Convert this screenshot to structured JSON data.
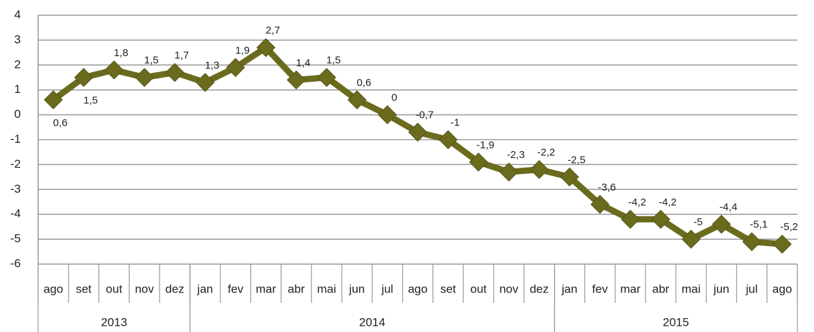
{
  "chart_data": {
    "type": "line",
    "categories": [
      "ago",
      "set",
      "out",
      "nov",
      "dez",
      "jan",
      "fev",
      "mar",
      "abr",
      "mai",
      "jun",
      "jul",
      "ago",
      "set",
      "out",
      "nov",
      "dez",
      "jan",
      "fev",
      "mar",
      "abr",
      "mai",
      "jun",
      "jul",
      "ago"
    ],
    "groups": [
      {
        "label": "2013",
        "count": 5
      },
      {
        "label": "2014",
        "count": 12
      },
      {
        "label": "2015",
        "count": 8
      }
    ],
    "series": [
      {
        "color": "#6b6b1e",
        "values": [
          0.6,
          1.5,
          1.8,
          1.5,
          1.7,
          1.3,
          1.9,
          2.7,
          1.4,
          1.5,
          0.6,
          0,
          -0.7,
          -1,
          -1.9,
          -2.3,
          -2.2,
          -2.5,
          -3.6,
          -4.2,
          -4.2,
          -5,
          -4.4,
          -5.1,
          -5.2
        ],
        "value_labels": [
          "0,6",
          "1,5",
          "1,8",
          "1,5",
          "1,7",
          "1,3",
          "1,9",
          "2,7",
          "1,4",
          "1,5",
          "0,6",
          "0",
          "-0,7",
          "-1",
          "-1,9",
          "-2,3",
          "-2,2",
          "-2,5",
          "-3,6",
          "-4,2",
          "-4,2",
          "-5",
          "-4,4",
          "-5,1",
          "-5,2"
        ]
      }
    ],
    "ylim": [
      -6,
      4
    ],
    "yticks": [
      -6,
      -5,
      -4,
      -3,
      -2,
      -1,
      0,
      1,
      2,
      3,
      4
    ],
    "grid": true
  }
}
